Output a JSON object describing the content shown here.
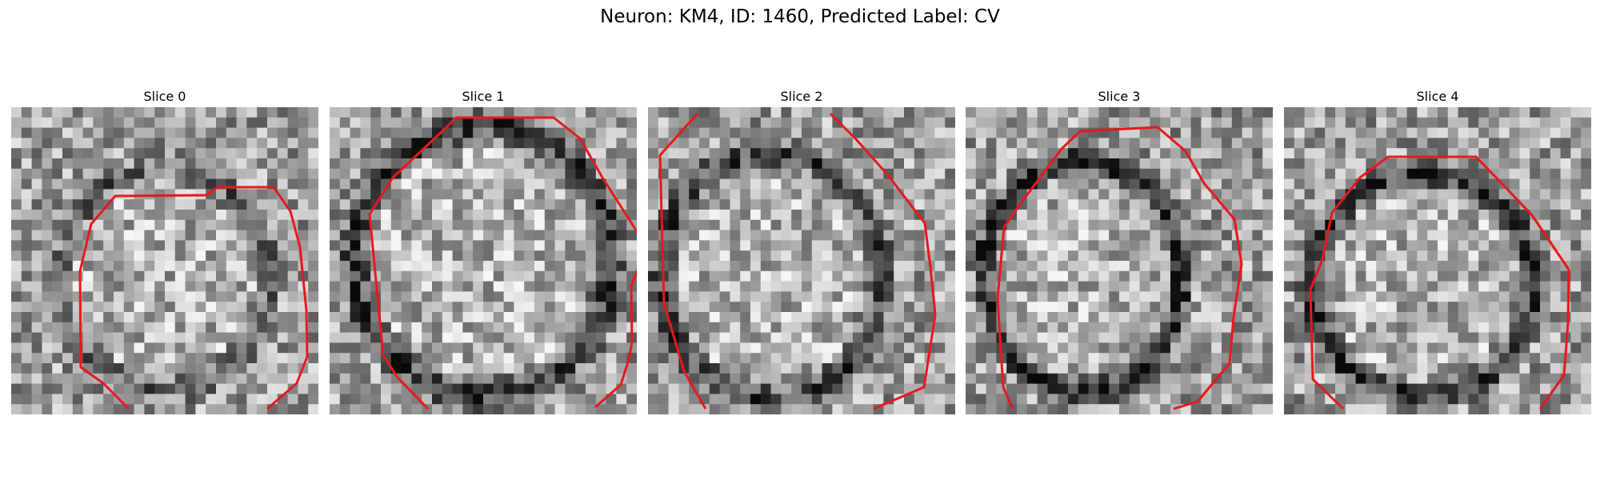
{
  "figure": {
    "title": "Neuron: KM4, ID: 1460, Predicted Label: CV"
  },
  "panels": [
    {
      "title": "Slice 0"
    },
    {
      "title": "Slice 1"
    },
    {
      "title": "Slice 2"
    },
    {
      "title": "Slice 3"
    },
    {
      "title": "Slice 4"
    }
  ],
  "colors": {
    "contour": "#e8181c",
    "background": "#ffffff"
  }
}
